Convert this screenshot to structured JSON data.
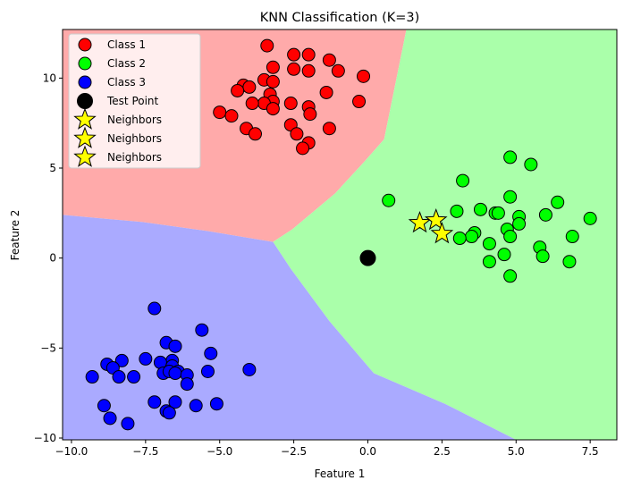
{
  "chart_data": {
    "type": "scatter",
    "title": "KNN Classification (K=3)",
    "xlabel": "Feature 1",
    "ylabel": "Feature 2",
    "xlim": [
      -10.3,
      8.4
    ],
    "ylim": [
      -10.1,
      12.7
    ],
    "xticks": [
      -10.0,
      -7.5,
      -5.0,
      -2.5,
      0.0,
      2.5,
      5.0,
      7.5
    ],
    "xtick_labels": [
      "−10.0",
      "−7.5",
      "−5.0",
      "−2.5",
      "0.0",
      "2.5",
      "5.0",
      "7.5"
    ],
    "yticks": [
      -10,
      -5,
      0,
      5,
      10
    ],
    "ytick_labels": [
      "−10",
      "−5",
      "0",
      "5",
      "10"
    ],
    "legend_position": "upper-left",
    "regions": [
      {
        "name": "Class 1 region",
        "color": "#ffaaaa",
        "polygon": [
          [
            -10.3,
            12.7
          ],
          [
            1.3,
            12.7
          ],
          [
            0.55,
            6.6
          ],
          [
            -0.15,
            5.3
          ],
          [
            -1.1,
            3.6
          ],
          [
            -2.55,
            1.6
          ],
          [
            -3.2,
            0.9
          ],
          [
            -5.4,
            1.5
          ],
          [
            -7.6,
            2.0
          ],
          [
            -10.3,
            2.4
          ]
        ]
      },
      {
        "name": "Class 2 region",
        "color": "#aaffaa",
        "polygon": [
          [
            1.3,
            12.7
          ],
          [
            8.4,
            12.7
          ],
          [
            8.4,
            -10.1
          ],
          [
            5.0,
            -10.1
          ],
          [
            2.6,
            -8.1
          ],
          [
            0.2,
            -6.4
          ],
          [
            -1.3,
            -3.5
          ],
          [
            -2.6,
            -0.6
          ],
          [
            -3.2,
            0.9
          ],
          [
            -2.55,
            1.6
          ],
          [
            -1.1,
            3.6
          ],
          [
            -0.15,
            5.3
          ],
          [
            0.55,
            6.6
          ]
        ]
      },
      {
        "name": "Class 3 region",
        "color": "#aaaaff",
        "polygon": [
          [
            -10.3,
            2.4
          ],
          [
            -7.6,
            2.0
          ],
          [
            -5.4,
            1.5
          ],
          [
            -3.2,
            0.9
          ],
          [
            -2.6,
            -0.6
          ],
          [
            -1.3,
            -3.5
          ],
          [
            0.2,
            -6.4
          ],
          [
            2.6,
            -8.1
          ],
          [
            5.0,
            -10.1
          ],
          [
            -10.3,
            -10.1
          ]
        ]
      }
    ],
    "series": [
      {
        "name": "Class 1",
        "marker": "circle",
        "color": "#ff0000",
        "points": [
          [
            -3.4,
            11.8
          ],
          [
            -2.5,
            11.3
          ],
          [
            -2.0,
            11.3
          ],
          [
            -1.3,
            11.0
          ],
          [
            -3.2,
            10.6
          ],
          [
            -2.5,
            10.5
          ],
          [
            -2.0,
            10.4
          ],
          [
            -1.0,
            10.4
          ],
          [
            -0.15,
            10.1
          ],
          [
            -3.5,
            9.9
          ],
          [
            -3.2,
            9.8
          ],
          [
            -4.2,
            9.6
          ],
          [
            -4.0,
            9.5
          ],
          [
            -4.4,
            9.3
          ],
          [
            -1.4,
            9.2
          ],
          [
            -3.3,
            9.1
          ],
          [
            -3.2,
            8.7
          ],
          [
            -3.5,
            8.6
          ],
          [
            -3.9,
            8.6
          ],
          [
            -2.6,
            8.6
          ],
          [
            -0.3,
            8.7
          ],
          [
            -2.0,
            8.4
          ],
          [
            -3.2,
            8.3
          ],
          [
            -5.0,
            8.1
          ],
          [
            -4.6,
            7.9
          ],
          [
            -1.95,
            8.0
          ],
          [
            -2.6,
            7.4
          ],
          [
            -1.3,
            7.2
          ],
          [
            -4.1,
            7.2
          ],
          [
            -3.8,
            6.9
          ],
          [
            -2.4,
            6.9
          ],
          [
            -2.0,
            6.4
          ],
          [
            -2.2,
            6.1
          ]
        ]
      },
      {
        "name": "Class 2",
        "marker": "circle",
        "color": "#00ff00",
        "points": [
          [
            4.8,
            5.6
          ],
          [
            5.5,
            5.2
          ],
          [
            3.2,
            4.3
          ],
          [
            4.8,
            3.4
          ],
          [
            0.7,
            3.2
          ],
          [
            6.4,
            3.1
          ],
          [
            3.8,
            2.7
          ],
          [
            3.0,
            2.6
          ],
          [
            4.3,
            2.5
          ],
          [
            4.4,
            2.5
          ],
          [
            6.0,
            2.4
          ],
          [
            5.1,
            2.3
          ],
          [
            7.5,
            2.2
          ],
          [
            5.1,
            1.9
          ],
          [
            4.7,
            1.6
          ],
          [
            3.6,
            1.4
          ],
          [
            3.5,
            1.2
          ],
          [
            4.8,
            1.2
          ],
          [
            6.9,
            1.2
          ],
          [
            3.1,
            1.1
          ],
          [
            4.1,
            0.8
          ],
          [
            5.8,
            0.6
          ],
          [
            4.6,
            0.2
          ],
          [
            5.9,
            0.1
          ],
          [
            4.1,
            -0.2
          ],
          [
            6.8,
            -0.2
          ],
          [
            4.8,
            -1.0
          ]
        ]
      },
      {
        "name": "Class 3",
        "marker": "circle",
        "color": "#0000ff",
        "points": [
          [
            -7.2,
            -2.8
          ],
          [
            -5.6,
            -4.0
          ],
          [
            -6.8,
            -4.7
          ],
          [
            -6.5,
            -4.9
          ],
          [
            -5.3,
            -5.3
          ],
          [
            -7.5,
            -5.6
          ],
          [
            -8.3,
            -5.7
          ],
          [
            -6.6,
            -5.7
          ],
          [
            -7.0,
            -5.8
          ],
          [
            -8.8,
            -5.9
          ],
          [
            -8.6,
            -6.1
          ],
          [
            -6.6,
            -6.0
          ],
          [
            -4.0,
            -6.2
          ],
          [
            -5.4,
            -6.3
          ],
          [
            -6.4,
            -6.3
          ],
          [
            -6.9,
            -6.4
          ],
          [
            -6.7,
            -6.3
          ],
          [
            -6.5,
            -6.4
          ],
          [
            -6.1,
            -6.5
          ],
          [
            -8.4,
            -6.6
          ],
          [
            -7.9,
            -6.6
          ],
          [
            -9.3,
            -6.6
          ],
          [
            -6.1,
            -7.0
          ],
          [
            -7.2,
            -8.0
          ],
          [
            -6.5,
            -8.0
          ],
          [
            -5.1,
            -8.1
          ],
          [
            -8.9,
            -8.2
          ],
          [
            -5.8,
            -8.2
          ],
          [
            -6.8,
            -8.5
          ],
          [
            -6.7,
            -8.6
          ],
          [
            -8.7,
            -8.9
          ],
          [
            -8.1,
            -9.2
          ]
        ]
      },
      {
        "name": "Test Point",
        "marker": "circle",
        "color": "#000000",
        "points": [
          [
            0.0,
            0.0
          ]
        ]
      },
      {
        "name": "Neighbors",
        "marker": "star",
        "color": "#ffff00",
        "points": [
          [
            1.75,
            1.95
          ]
        ]
      },
      {
        "name": "Neighbors",
        "marker": "star",
        "color": "#ffff00",
        "points": [
          [
            2.3,
            2.1
          ]
        ]
      },
      {
        "name": "Neighbors",
        "marker": "star",
        "color": "#ffff00",
        "points": [
          [
            2.5,
            1.35
          ]
        ]
      }
    ]
  }
}
